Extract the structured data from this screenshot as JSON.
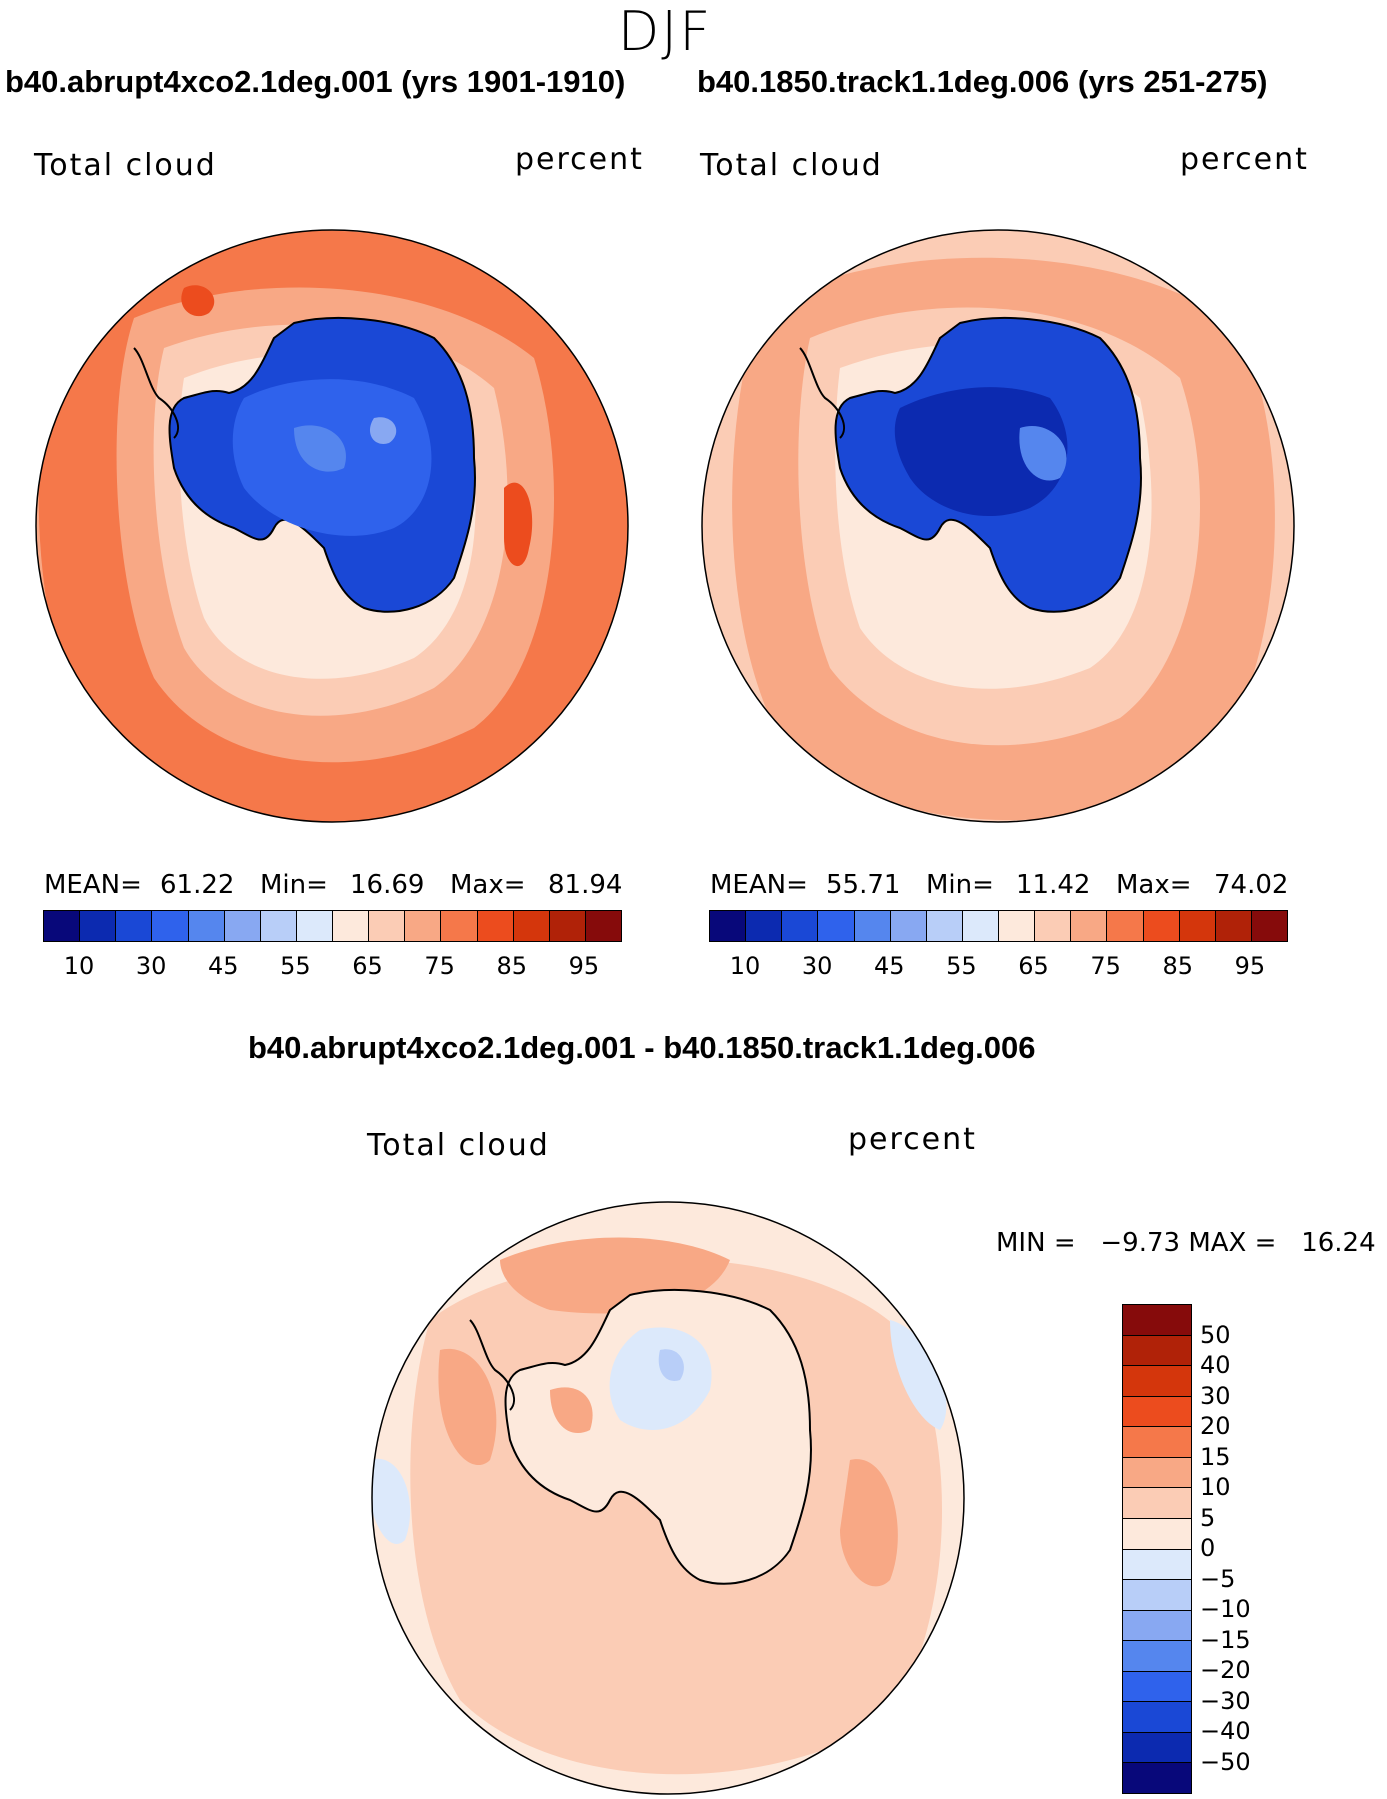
{
  "title": "DJF",
  "panel_a": {
    "heading": "b40.abrupt4xco2.1deg.001 (yrs 1901-1910)",
    "variable": "Total cloud",
    "units": "percent",
    "mean_label": "MEAN=",
    "mean_value": "61.22",
    "min_label": "Min=",
    "min_value": "16.69",
    "max_label": "Max=",
    "max_value": "81.94"
  },
  "panel_b": {
    "heading": "b40.1850.track1.1deg.006 (yrs 251-275)",
    "variable": "Total cloud",
    "units": "percent",
    "mean_label": "MEAN=",
    "mean_value": "55.71",
    "min_label": "Min=",
    "min_value": "11.42",
    "max_label": "Max=",
    "max_value": "74.02"
  },
  "panel_diff": {
    "heading": "b40.abrupt4xco2.1deg.001 - b40.1850.track1.1deg.006",
    "variable": "Total cloud",
    "units": "percent",
    "range_text": "MIN =   −9.73 MAX =   16.24"
  },
  "colorbar_abs": {
    "colors": [
      "#08087a",
      "#0c2ab0",
      "#1a48d6",
      "#2f62ec",
      "#5586ee",
      "#88a8f2",
      "#b8cef8",
      "#dce9fb",
      "#fde9dc",
      "#fbccb5",
      "#f8a885",
      "#f5784a",
      "#ec4c1e",
      "#d4360c",
      "#b02208",
      "#860b0b"
    ],
    "labels": [
      "10",
      "30",
      "45",
      "55",
      "65",
      "75",
      "85",
      "95"
    ]
  },
  "colorbar_diff": {
    "colors": [
      "#860b0b",
      "#b02208",
      "#d4360c",
      "#ec4c1e",
      "#f5784a",
      "#f8a885",
      "#fbccb5",
      "#fde9dc",
      "#dce9fb",
      "#b8cef8",
      "#88a8f2",
      "#5586ee",
      "#2f62ec",
      "#1a48d6",
      "#0c2ab0",
      "#08087a"
    ],
    "labels": [
      "50",
      "40",
      "30",
      "20",
      "15",
      "10",
      "5",
      "0",
      "−5",
      "−10",
      "−15",
      "−20",
      "−30",
      "−40",
      "−50"
    ]
  }
}
